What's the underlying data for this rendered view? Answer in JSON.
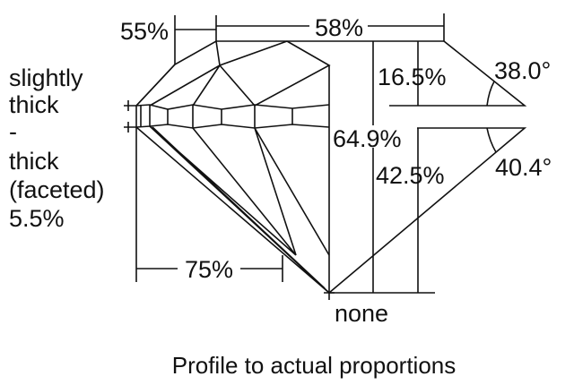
{
  "diagram": {
    "left_label_lines": [
      "slightly",
      "thick",
      "-",
      "thick",
      "(faceted)",
      "5.5%"
    ],
    "table_width_label": "58%",
    "star_length_label": "55%",
    "lower_girdle_label": "75%",
    "total_depth_label": "64.9%",
    "crown_height_label": "16.5%",
    "pavilion_depth_label": "42.5%",
    "crown_angle_label": "38.0°",
    "pavilion_angle_label": "40.4°",
    "culet_label": "none",
    "caption": "Profile to actual proportions",
    "line_color": "#111111"
  }
}
